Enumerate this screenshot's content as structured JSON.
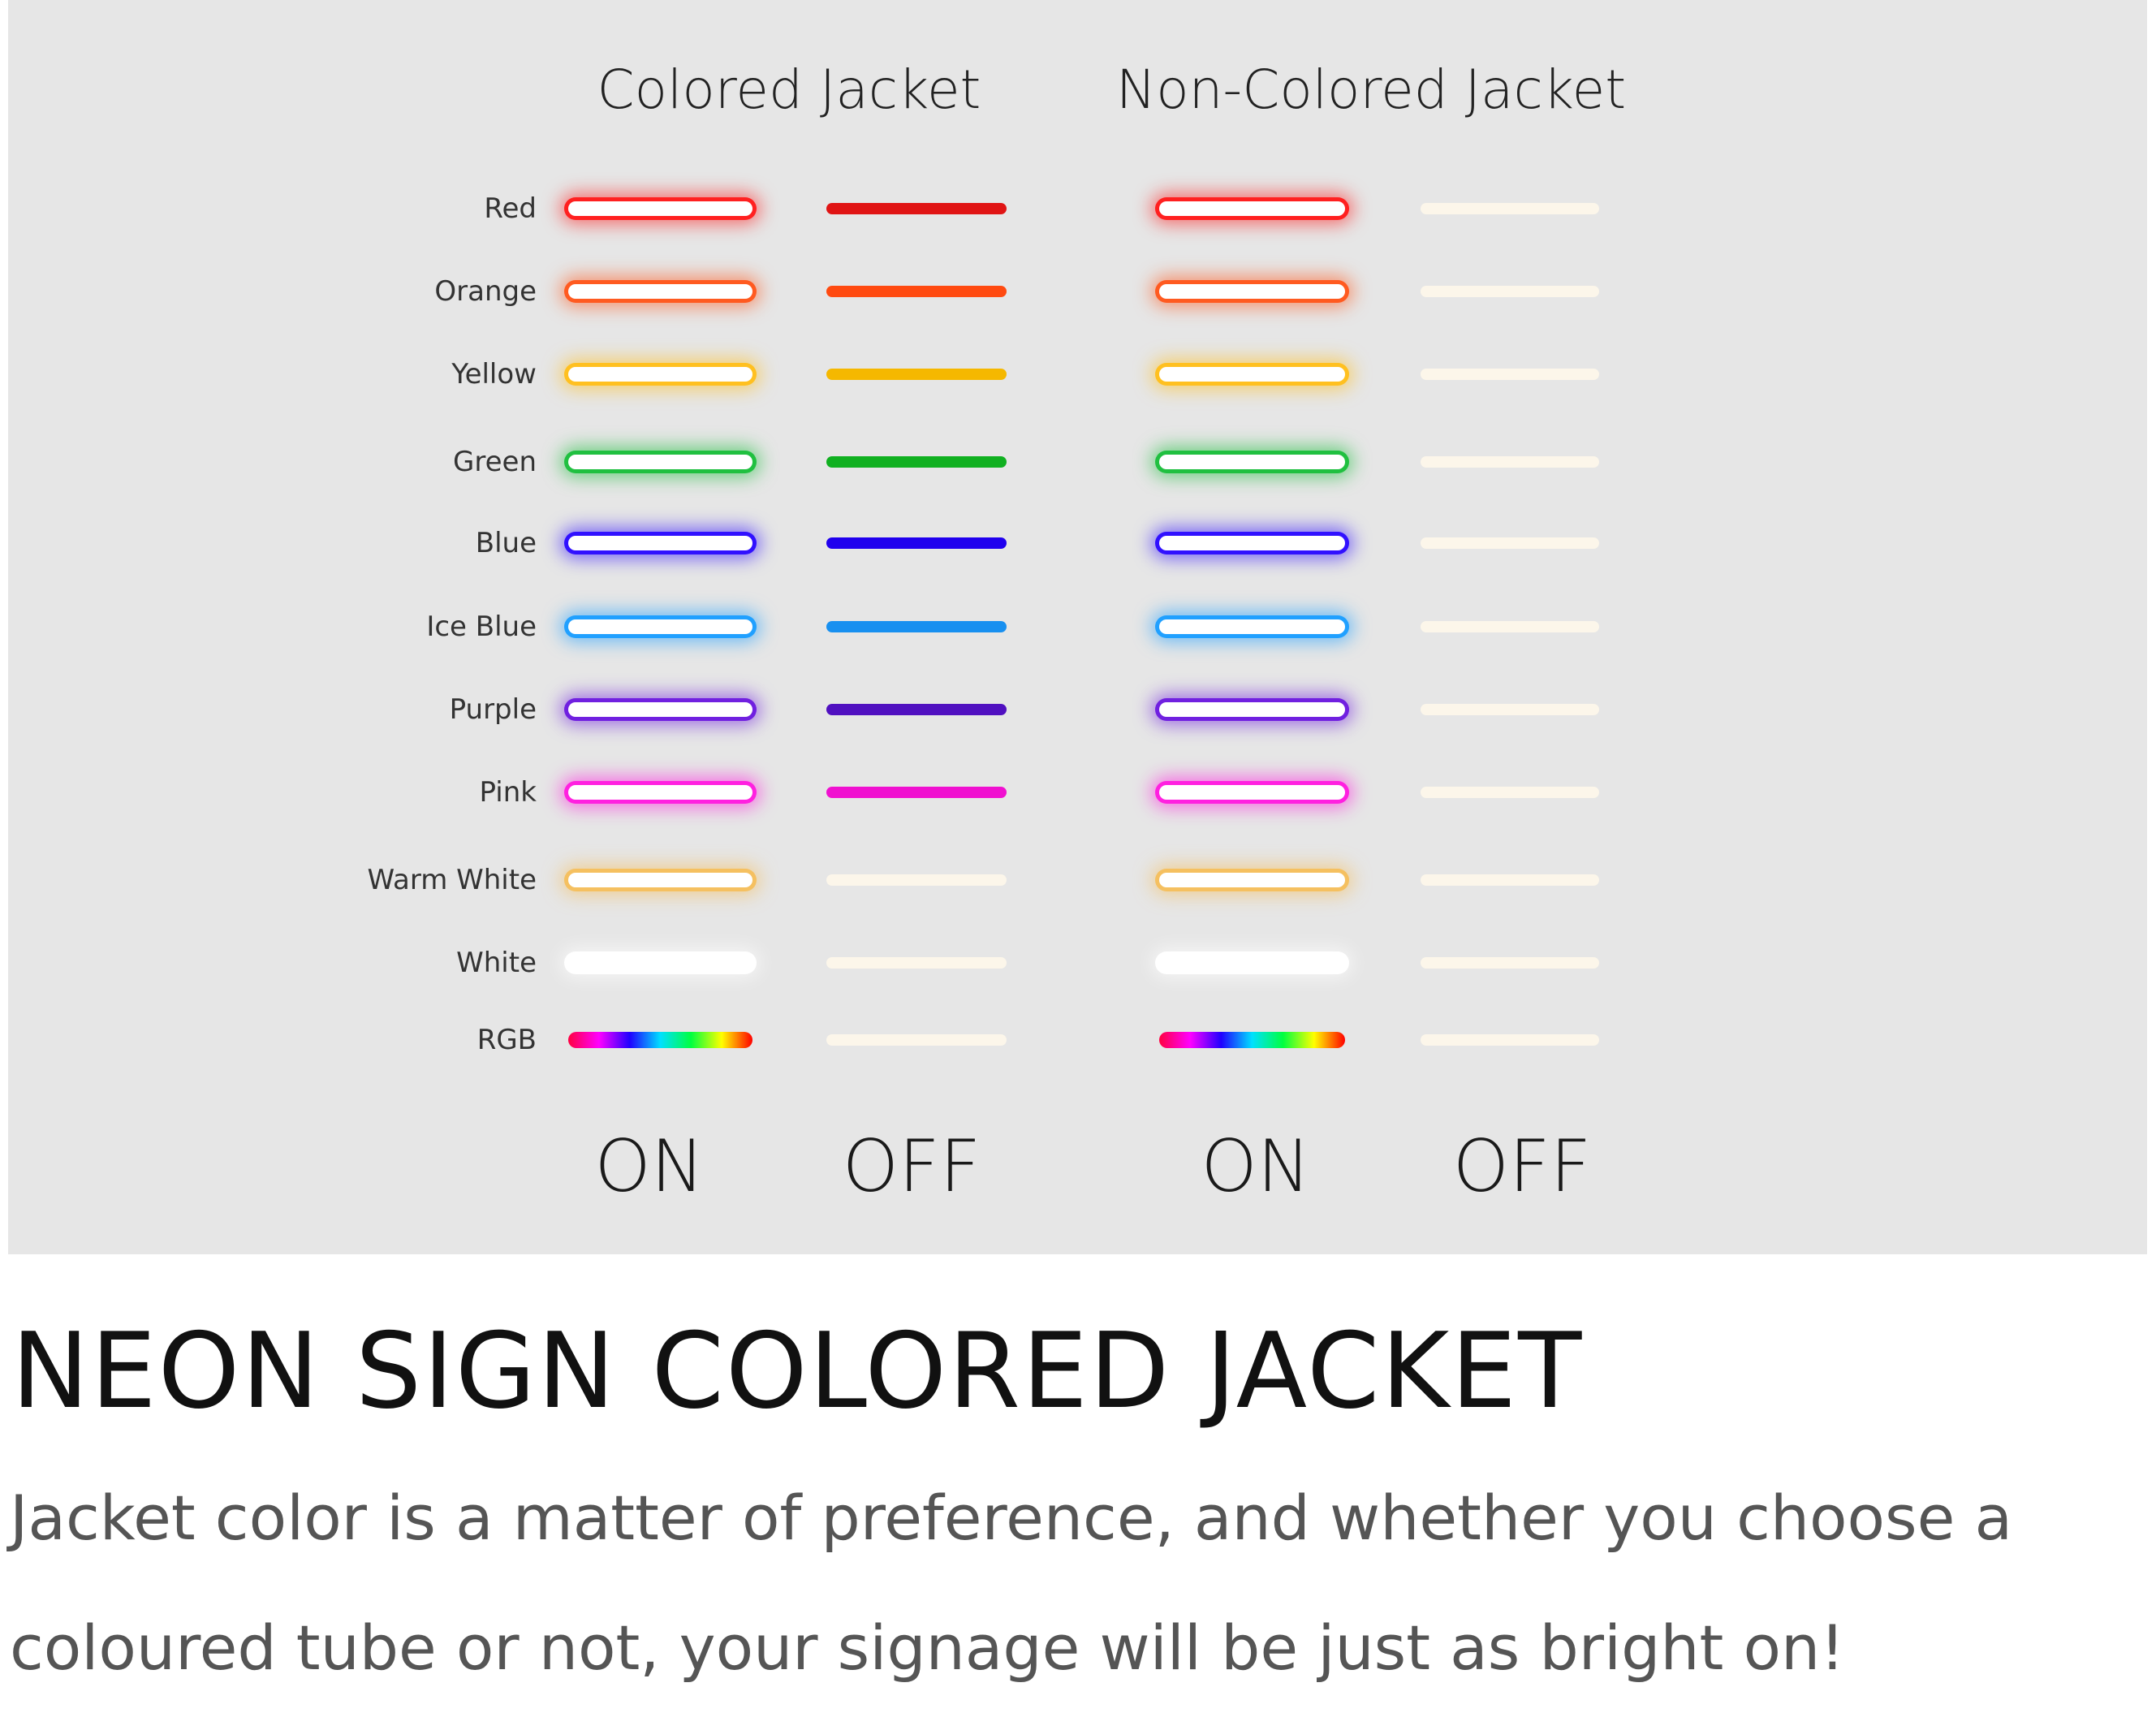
{
  "headers": {
    "colored": "Colored Jacket",
    "non_colored": "Non-Colored Jacket"
  },
  "states": {
    "on": "ON",
    "off": "OFF"
  },
  "rows": [
    {
      "label": "Red",
      "color": "#ff2020",
      "off_colored": "#e01414"
    },
    {
      "label": "Orange",
      "color": "#ff5a20",
      "off_colored": "#ff4a10"
    },
    {
      "label": "Yellow",
      "color": "#ffc020",
      "off_colored": "#f5b800"
    },
    {
      "label": "Green",
      "color": "#20c040",
      "off_colored": "#10b020"
    },
    {
      "label": "Blue",
      "color": "#3010ff",
      "off_colored": "#2000ee"
    },
    {
      "label": "Ice Blue",
      "color": "#20a0ff",
      "off_colored": "#1890f0"
    },
    {
      "label": "Purple",
      "color": "#7020e0",
      "off_colored": "#5010c0"
    },
    {
      "label": "Pink",
      "color": "#ff20e0",
      "off_colored": "#f010d0"
    },
    {
      "label": "Warm White",
      "color": "#f5c060",
      "off_colored": "#fcf6ea"
    },
    {
      "label": "White",
      "color": "#ffffff",
      "off_colored": "#fcf6ea"
    },
    {
      "label": "RGB",
      "color": "rgb",
      "off_colored": "#fcf6ea"
    }
  ],
  "off_plain_color": "#fcf6ea",
  "title": "NEON SIGN COLORED JACKET",
  "body": "Jacket color is a matter of preference, and whether you choose a coloured tube or not, your signage will be just as bright on!"
}
